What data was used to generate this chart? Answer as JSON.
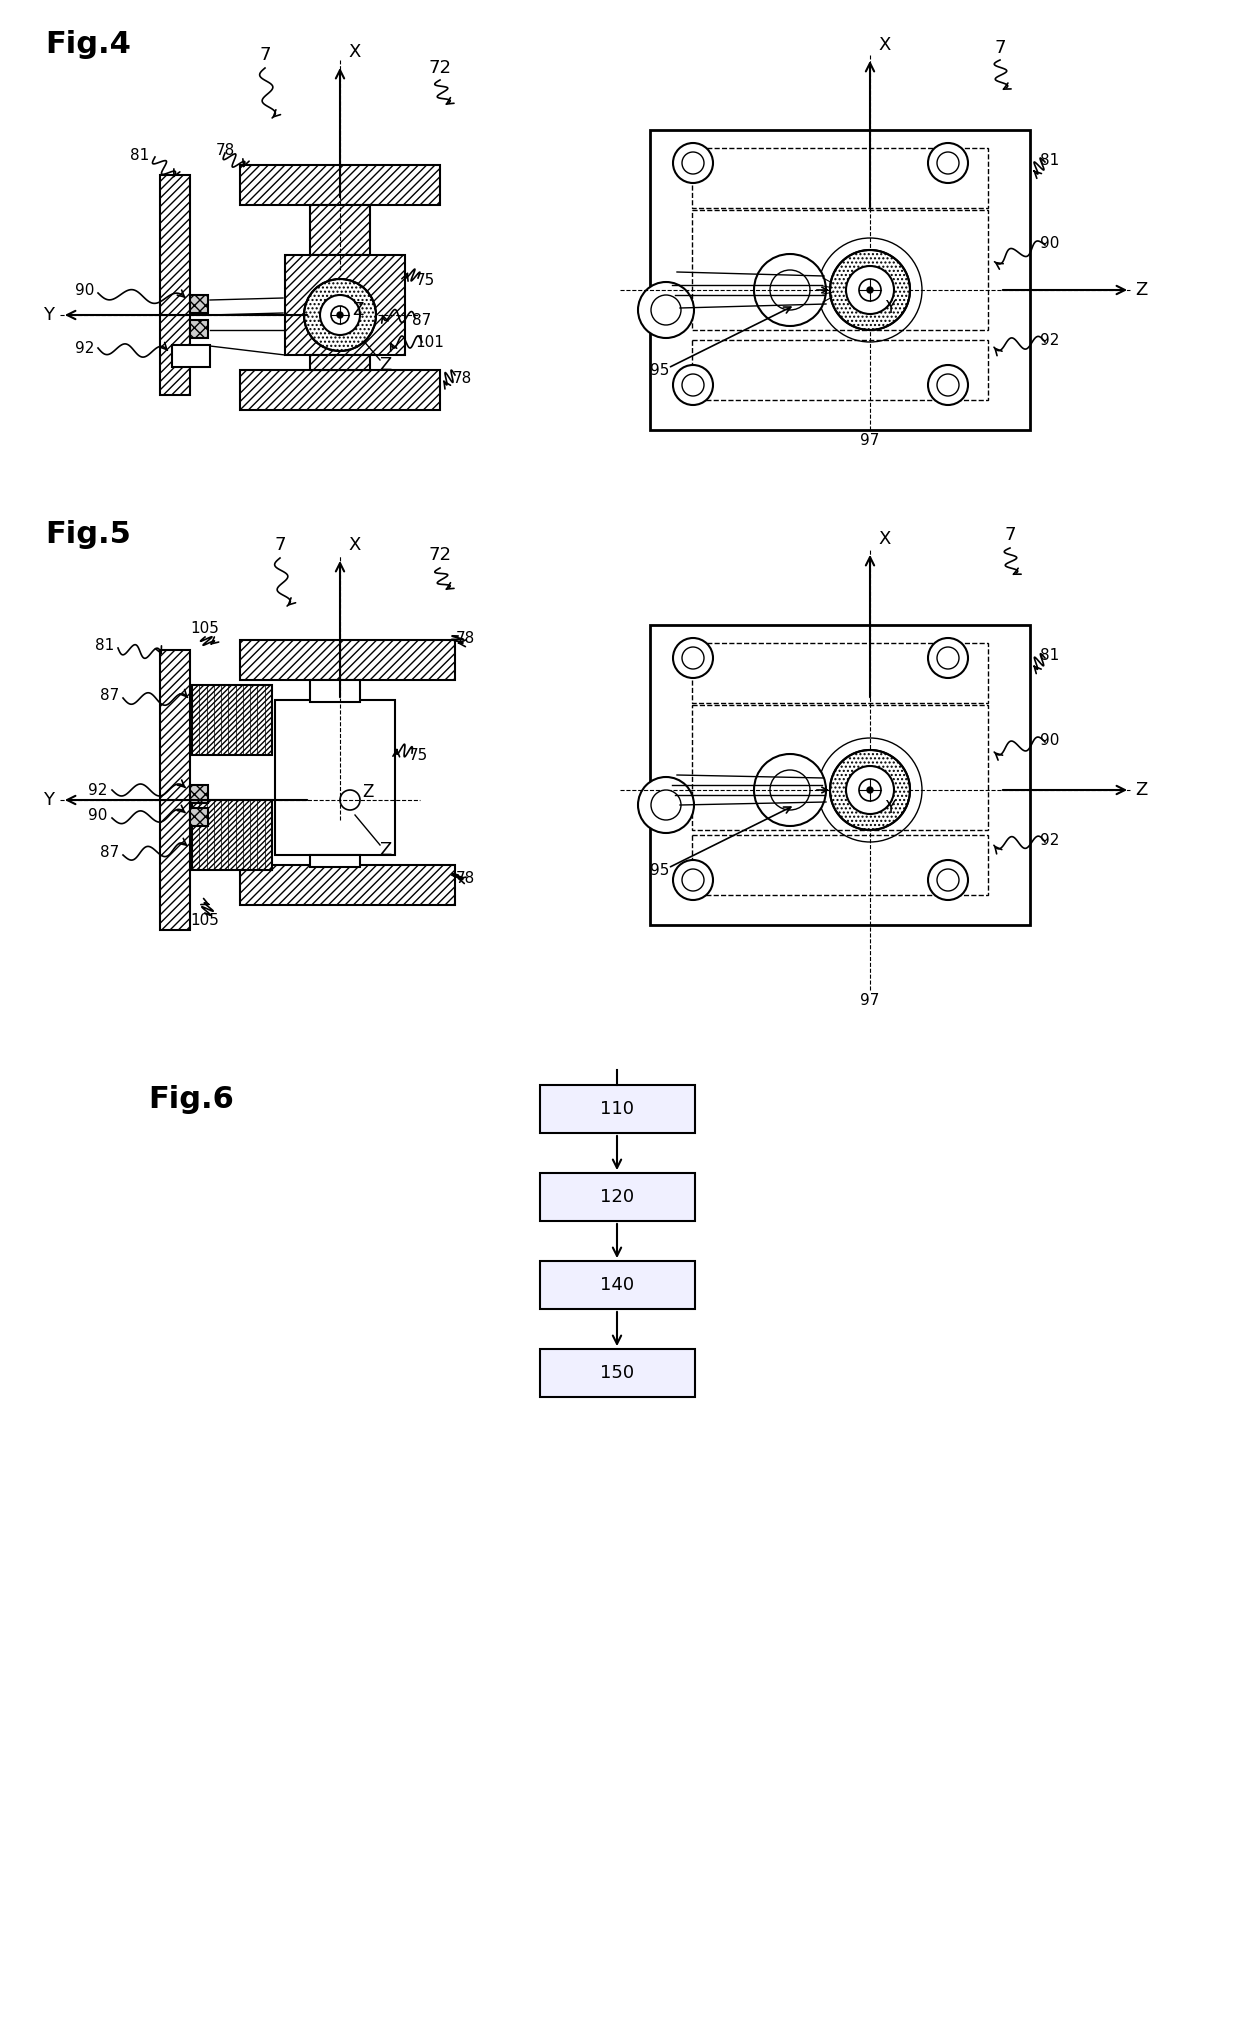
{
  "bg_color": "#ffffff",
  "fig4_label": "Fig.4",
  "fig5_label": "Fig.5",
  "fig6_label": "Fig.6",
  "fig6_boxes": [
    "110",
    "120",
    "140",
    "150"
  ],
  "lfs": 22,
  "nfs": 11,
  "afs": 13
}
